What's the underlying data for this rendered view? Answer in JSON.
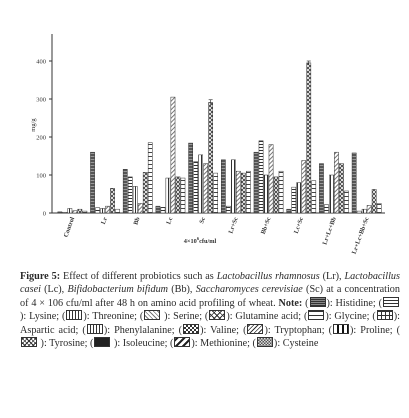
{
  "chart_data": {
    "type": "bar",
    "ylabel": "mg/g",
    "ylim": [
      0,
      450
    ],
    "yticks": [
      0,
      100,
      200,
      300,
      400
    ],
    "grid": false,
    "categories": [
      "Control",
      "Lr",
      "Bb",
      "Lc",
      "Sc",
      "Lr+Sc",
      "Bb+Sc",
      "Lc+Sc",
      "Lr+Lc+Bb",
      "Lr+Lc+Bb+Sc"
    ],
    "x_axis_label_text": "4×10",
    "x_axis_label_sup": "6",
    "x_axis_label_rest": "cfu/ml",
    "series": [
      {
        "name": "Histidine",
        "pattern": "hist",
        "values": [
          3,
          160,
          115,
          18,
          184,
          140,
          160,
          10,
          130,
          158
        ]
      },
      {
        "name": "Lysine",
        "pattern": "lys",
        "values": [
          2,
          14,
          95,
          15,
          135,
          18,
          190,
          68,
          22,
          5
        ]
      },
      {
        "name": "Threonine",
        "pattern": "thr",
        "values": [
          12,
          12,
          70,
          92,
          153,
          140,
          100,
          80,
          100,
          10
        ]
      },
      {
        "name": "Serine",
        "pattern": "ser",
        "values": [
          6,
          18,
          25,
          305,
          130,
          110,
          180,
          138,
          160,
          20
        ]
      },
      {
        "name": "Glutamine acid",
        "pattern": "glu",
        "values": [
          10,
          65,
          107,
          95,
          291,
          105,
          95,
          395,
          130,
          62
        ]
      },
      {
        "name": "Glycine",
        "pattern": "gly",
        "values": [
          5,
          10,
          185,
          92,
          105,
          110,
          110,
          85,
          58,
          25
        ]
      }
    ],
    "error_bars": [
      {
        "series": "Glutamine acid",
        "category": "Sc",
        "error": 7
      },
      {
        "series": "Glutamine acid",
        "category": "Lc+Sc",
        "error": 5
      }
    ]
  },
  "caption": {
    "figure_label": "Figure 5:",
    "text_1": " Effect of different probiotics such as ",
    "lr_name": "Lactobacillus rhamnosus",
    "text_2": " (Lr), ",
    "lc_name": "Lactobacillus casei",
    "text_3": " (Lc), ",
    "bb_name": "Bifidobacterium bifidum",
    "text_4": " (Bb), ",
    "sc_name": "Saccharomyces cerevisiae",
    "text_5": " (Sc) at a concentration of 4 × 106 cfu/ml after 48 h on amino acid profiling of wheat. ",
    "note_label": "Note:",
    "legend": [
      {
        "name": "Histidine",
        "swatch": "histidine",
        "prefix": " (",
        "suffix": "): Histidine;"
      },
      {
        "name": "Lysine",
        "swatch": "lysine",
        "prefix": " (",
        "suffix": "): Lysine;"
      },
      {
        "name": "Threonine",
        "swatch": "threonine",
        "prefix": " (",
        "suffix": "): Threonine;"
      },
      {
        "name": "Serine",
        "swatch": "serine",
        "prefix": " (",
        "suffix": " ): Serine;"
      },
      {
        "name": "Glutamine acid",
        "swatch": "glutamine",
        "prefix": " (",
        "suffix": "): Glutamine acid;"
      },
      {
        "name": "Glycine",
        "swatch": "glycine",
        "prefix": " (",
        "suffix": "): Glycine;"
      },
      {
        "name": "Aspartic acid",
        "swatch": "aspartic",
        "prefix": " (",
        "suffix": "): Aspartic acid;"
      },
      {
        "name": "Phenylalanine",
        "swatch": "phenylalanine",
        "prefix": " (",
        "suffix": "): Phenylalanine;"
      },
      {
        "name": "Valine",
        "swatch": "valine",
        "prefix": " (",
        "suffix": "): Valine;"
      },
      {
        "name": "Tryptophan",
        "swatch": "tryptophan",
        "prefix": " (",
        "suffix": "): Tryptophan;"
      },
      {
        "name": "Proline",
        "swatch": "proline",
        "prefix": " (",
        "suffix": "): Proline;"
      },
      {
        "name": "Tyrosine",
        "swatch": "tyrosine",
        "prefix": " (",
        "suffix": " ): Tyrosine;"
      },
      {
        "name": "Isoleucine",
        "swatch": "isoleucine",
        "prefix": " (",
        "suffix": " ): Isoleucine;"
      },
      {
        "name": "Methionine",
        "swatch": "methionine",
        "prefix": " (",
        "suffix": "): Methionine;"
      },
      {
        "name": "Cysteine",
        "swatch": "cysteine",
        "prefix": " (",
        "suffix": "): Cysteine"
      }
    ]
  }
}
